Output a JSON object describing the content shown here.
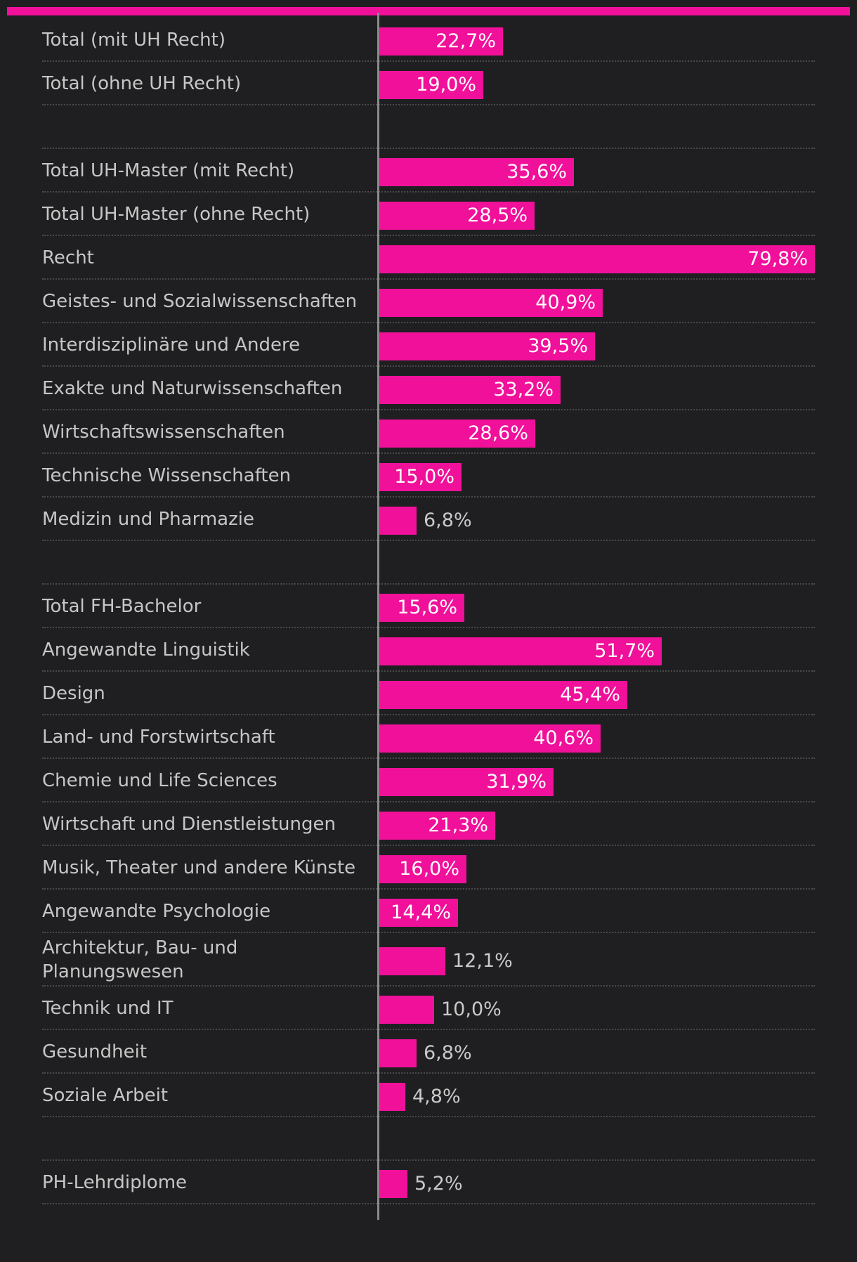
{
  "chart_data": {
    "type": "bar",
    "orientation": "horizontal",
    "xlim": [
      0,
      79.8
    ],
    "unit": "%",
    "color": "#f0109a",
    "groups": [
      {
        "categories": [
          "Total (mit UH Recht)",
          "Total (ohne UH Recht)"
        ],
        "values": [
          22.7,
          19.0
        ],
        "labels": [
          "22,7%",
          "19,0%"
        ]
      },
      {
        "categories": [
          "Total UH-Master (mit Recht)",
          "Total UH-Master (ohne Recht)",
          "Recht",
          "Geistes- und Sozialwissenschaften",
          "Interdisziplinäre und Andere",
          "Exakte und Naturwissenschaften",
          "Wirtschaftswissenschaften",
          "Technische Wissenschaften",
          "Medizin und Pharmazie"
        ],
        "values": [
          35.6,
          28.5,
          79.8,
          40.9,
          39.5,
          33.2,
          28.6,
          15.0,
          6.8
        ],
        "labels": [
          "35,6%",
          "28,5%",
          "79,8%",
          "40,9%",
          "39,5%",
          "33,2%",
          "28,6%",
          "15,0%",
          "6,8%"
        ]
      },
      {
        "categories": [
          "Total FH-Bachelor",
          "Angewandte Linguistik",
          "Design",
          "Land- und Forstwirtschaft",
          "Chemie und Life Sciences",
          "Wirtschaft und Dienstleistungen",
          "Musik, Theater und andere Künste",
          "Angewandte Psychologie",
          "Architektur, Bau- und Planungswesen",
          "Technik und IT",
          "Gesundheit",
          "Soziale Arbeit"
        ],
        "values": [
          15.6,
          51.7,
          45.4,
          40.6,
          31.9,
          21.3,
          16.0,
          14.4,
          12.1,
          10.0,
          6.8,
          4.8
        ],
        "labels": [
          "15,6%",
          "51,7%",
          "45,4%",
          "40,6%",
          "31,9%",
          "21,3%",
          "16,0%",
          "14,4%",
          "12,1%",
          "10,0%",
          "6,8%",
          "4,8%"
        ]
      },
      {
        "categories": [
          "PH-Lehrdiplome"
        ],
        "values": [
          5.2
        ],
        "labels": [
          "5,2%"
        ]
      }
    ]
  }
}
